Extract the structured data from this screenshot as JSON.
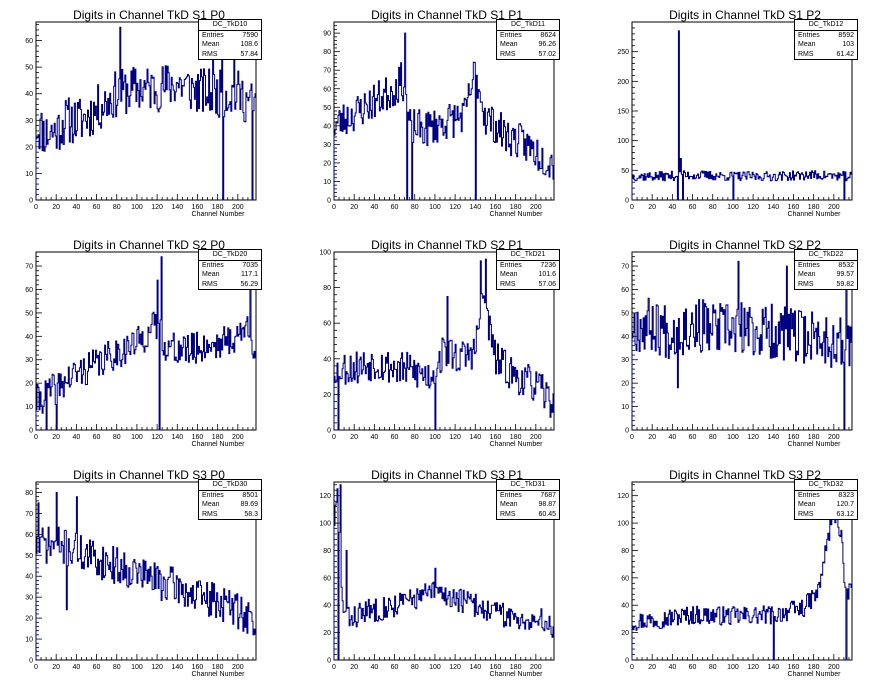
{
  "stat_labels": {
    "entries": "Entries",
    "mean": "Mean",
    "rms": "RMS"
  },
  "chart_data": [
    {
      "type": "line",
      "title": "Digits in Channel TkD S1 P0",
      "xlabel": "Channel Number",
      "stats": {
        "name": "DC_TkD10",
        "entries": "7590",
        "mean": "108.6",
        "rms": "57.84"
      },
      "xlim": [
        0,
        218
      ],
      "ylim": [
        0,
        67
      ],
      "xticks": [
        0,
        20,
        40,
        60,
        80,
        100,
        120,
        140,
        160,
        180,
        200
      ],
      "yticks": [
        0,
        10,
        20,
        30,
        40,
        50,
        60
      ],
      "profile": [
        [
          0,
          28
        ],
        [
          10,
          25
        ],
        [
          20,
          26
        ],
        [
          30,
          30
        ],
        [
          45,
          30
        ],
        [
          60,
          34
        ],
        [
          80,
          40
        ],
        [
          100,
          42
        ],
        [
          120,
          42
        ],
        [
          140,
          44
        ],
        [
          160,
          41
        ],
        [
          180,
          40
        ],
        [
          200,
          40
        ],
        [
          218,
          35
        ]
      ],
      "noise": 9,
      "seed": 11,
      "spikes": [
        [
          83,
          65
        ],
        [
          175,
          60
        ],
        [
          184,
          60
        ],
        [
          196,
          58
        ],
        [
          185,
          0
        ],
        [
          214,
          0
        ]
      ]
    },
    {
      "type": "line",
      "title": "Digits in Channel TkD S1 P1",
      "xlabel": "Channel Number",
      "stats": {
        "name": "DC_TkD11",
        "entries": "8624",
        "mean": "96.26",
        "rms": "57.02"
      },
      "xlim": [
        0,
        218
      ],
      "ylim": [
        0,
        96
      ],
      "xticks": [
        0,
        20,
        40,
        60,
        80,
        100,
        120,
        140,
        160,
        180,
        200
      ],
      "yticks": [
        0,
        10,
        20,
        30,
        40,
        50,
        60,
        70,
        80,
        90
      ],
      "profile": [
        [
          0,
          40
        ],
        [
          15,
          45
        ],
        [
          30,
          50
        ],
        [
          45,
          55
        ],
        [
          60,
          60
        ],
        [
          68,
          65
        ],
        [
          75,
          40
        ],
        [
          90,
          38
        ],
        [
          110,
          42
        ],
        [
          130,
          46
        ],
        [
          140,
          70
        ],
        [
          150,
          45
        ],
        [
          170,
          35
        ],
        [
          190,
          30
        ],
        [
          210,
          22
        ],
        [
          218,
          20
        ]
      ],
      "noise": 10,
      "seed": 23,
      "spikes": [
        [
          70,
          90
        ],
        [
          140,
          85
        ],
        [
          72,
          0
        ],
        [
          77,
          0
        ],
        [
          140,
          0
        ]
      ]
    },
    {
      "type": "line",
      "title": "Digits in Channel TkD S1 P2",
      "xlabel": "Channel Number",
      "stats": {
        "name": "DC_TkD12",
        "entries": "8592",
        "mean": "103",
        "rms": "61.42"
      },
      "xlim": [
        0,
        218
      ],
      "ylim": [
        0,
        300
      ],
      "xticks": [
        0,
        20,
        40,
        60,
        80,
        100,
        120,
        140,
        160,
        180,
        200
      ],
      "yticks": [
        0,
        50,
        100,
        150,
        200,
        250
      ],
      "profile": [
        [
          0,
          40
        ],
        [
          30,
          40
        ],
        [
          60,
          42
        ],
        [
          100,
          40
        ],
        [
          140,
          40
        ],
        [
          180,
          42
        ],
        [
          218,
          40
        ]
      ],
      "noise": 8,
      "seed": 37,
      "spikes": [
        [
          46,
          285
        ],
        [
          48,
          70
        ],
        [
          45,
          0
        ],
        [
          50,
          0
        ],
        [
          100,
          0
        ],
        [
          210,
          0
        ]
      ]
    },
    {
      "type": "line",
      "title": "Digits in Channel TkD S2 P0",
      "xlabel": "Channel Number",
      "stats": {
        "name": "DC_TkD20",
        "entries": "7035",
        "mean": "117.1",
        "rms": "56.29"
      },
      "xlim": [
        0,
        218
      ],
      "ylim": [
        0,
        76
      ],
      "xticks": [
        0,
        20,
        40,
        60,
        80,
        100,
        120,
        140,
        160,
        180,
        200
      ],
      "yticks": [
        0,
        10,
        20,
        30,
        40,
        50,
        60,
        70
      ],
      "profile": [
        [
          0,
          12
        ],
        [
          20,
          18
        ],
        [
          40,
          24
        ],
        [
          60,
          28
        ],
        [
          80,
          33
        ],
        [
          100,
          37
        ],
        [
          120,
          45
        ],
        [
          130,
          35
        ],
        [
          150,
          34
        ],
        [
          170,
          36
        ],
        [
          190,
          38
        ],
        [
          200,
          40
        ],
        [
          212,
          45
        ],
        [
          218,
          30
        ]
      ],
      "noise": 7,
      "seed": 41,
      "spikes": [
        [
          124,
          74
        ],
        [
          120,
          64
        ],
        [
          122,
          0
        ],
        [
          10,
          0
        ],
        [
          20,
          0
        ],
        [
          212,
          62
        ]
      ]
    },
    {
      "type": "line",
      "title": "Digits in Channel TkD S2 P1",
      "xlabel": "Channel Number",
      "stats": {
        "name": "DC_TkD21",
        "entries": "7236",
        "mean": "101.6",
        "rms": "57.06"
      },
      "xlim": [
        0,
        218
      ],
      "ylim": [
        0,
        100
      ],
      "xticks": [
        0,
        20,
        40,
        60,
        80,
        100,
        120,
        140,
        160,
        180,
        200
      ],
      "yticks": [
        0,
        20,
        40,
        60,
        80,
        100
      ],
      "profile": [
        [
          0,
          35
        ],
        [
          20,
          35
        ],
        [
          40,
          38
        ],
        [
          60,
          35
        ],
        [
          80,
          33
        ],
        [
          95,
          30
        ],
        [
          110,
          45
        ],
        [
          125,
          40
        ],
        [
          140,
          45
        ],
        [
          148,
          75
        ],
        [
          160,
          40
        ],
        [
          180,
          30
        ],
        [
          200,
          25
        ],
        [
          218,
          15
        ]
      ],
      "noise": 10,
      "seed": 53,
      "spikes": [
        [
          145,
          95
        ],
        [
          150,
          96
        ],
        [
          100,
          0
        ],
        [
          112,
          75
        ],
        [
          4,
          0
        ]
      ]
    },
    {
      "type": "line",
      "title": "Digits in Channel TkD S2 P2",
      "xlabel": "Channel Number",
      "stats": {
        "name": "DC_TkD22",
        "entries": "8532",
        "mean": "99.57",
        "rms": "59.82"
      },
      "xlim": [
        0,
        218
      ],
      "ylim": [
        0,
        76
      ],
      "xticks": [
        0,
        20,
        40,
        60,
        80,
        100,
        120,
        140,
        160,
        180,
        200
      ],
      "yticks": [
        0,
        10,
        20,
        30,
        40,
        50,
        60,
        70
      ],
      "profile": [
        [
          0,
          45
        ],
        [
          20,
          45
        ],
        [
          40,
          42
        ],
        [
          60,
          45
        ],
        [
          80,
          43
        ],
        [
          100,
          43
        ],
        [
          120,
          42
        ],
        [
          140,
          42
        ],
        [
          160,
          40
        ],
        [
          180,
          40
        ],
        [
          200,
          38
        ],
        [
          212,
          35
        ],
        [
          218,
          40
        ]
      ],
      "noise": 12,
      "seed": 67,
      "spikes": [
        [
          105,
          72
        ],
        [
          153,
          70
        ],
        [
          45,
          18
        ],
        [
          210,
          0
        ],
        [
          212,
          70
        ]
      ]
    },
    {
      "type": "line",
      "title": "Digits in Channel TkD S3 P0",
      "xlabel": "Channel Number",
      "stats": {
        "name": "DC_TkD30",
        "entries": "8501",
        "mean": "89.69",
        "rms": "58.3"
      },
      "xlim": [
        0,
        218
      ],
      "ylim": [
        0,
        85
      ],
      "xticks": [
        0,
        20,
        40,
        60,
        80,
        100,
        120,
        140,
        160,
        180,
        200
      ],
      "yticks": [
        0,
        10,
        20,
        30,
        40,
        50,
        60,
        70,
        80
      ],
      "profile": [
        [
          0,
          55
        ],
        [
          20,
          55
        ],
        [
          40,
          52
        ],
        [
          60,
          48
        ],
        [
          80,
          45
        ],
        [
          100,
          42
        ],
        [
          120,
          38
        ],
        [
          140,
          35
        ],
        [
          160,
          30
        ],
        [
          180,
          28
        ],
        [
          200,
          24
        ],
        [
          218,
          18
        ]
      ],
      "noise": 9,
      "seed": 71,
      "spikes": [
        [
          2,
          75
        ],
        [
          20,
          80
        ],
        [
          40,
          78
        ],
        [
          30,
          24
        ],
        [
          215,
          12
        ]
      ]
    },
    {
      "type": "line",
      "title": "Digits in Channel TkD S3 P1",
      "xlabel": "Channel Number",
      "stats": {
        "name": "DC_TkD31",
        "entries": "7687",
        "mean": "98.87",
        "rms": "60.45"
      },
      "xlim": [
        0,
        218
      ],
      "ylim": [
        0,
        130
      ],
      "xticks": [
        0,
        20,
        40,
        60,
        80,
        100,
        120,
        140,
        160,
        180,
        200
      ],
      "yticks": [
        0,
        20,
        40,
        60,
        80,
        100,
        120
      ],
      "profile": [
        [
          0,
          100
        ],
        [
          4,
          120
        ],
        [
          8,
          40
        ],
        [
          14,
          30
        ],
        [
          30,
          35
        ],
        [
          60,
          40
        ],
        [
          80,
          45
        ],
        [
          100,
          50
        ],
        [
          120,
          45
        ],
        [
          140,
          40
        ],
        [
          160,
          35
        ],
        [
          180,
          30
        ],
        [
          200,
          30
        ],
        [
          218,
          25
        ]
      ],
      "noise": 9,
      "seed": 83,
      "spikes": [
        [
          3,
          125
        ],
        [
          6,
          128
        ],
        [
          12,
          80
        ],
        [
          100,
          67
        ],
        [
          4,
          0
        ]
      ]
    },
    {
      "type": "line",
      "title": "Digits in Channel TkD S3 P2",
      "xlabel": "Channel Number",
      "stats": {
        "name": "DC_TkD32",
        "entries": "8323",
        "mean": "120.7",
        "rms": "63.12"
      },
      "xlim": [
        0,
        218
      ],
      "ylim": [
        0,
        130
      ],
      "xticks": [
        0,
        20,
        40,
        60,
        80,
        100,
        120,
        140,
        160,
        180,
        200
      ],
      "yticks": [
        0,
        20,
        40,
        60,
        80,
        100,
        120
      ],
      "profile": [
        [
          0,
          28
        ],
        [
          30,
          30
        ],
        [
          60,
          33
        ],
        [
          100,
          32
        ],
        [
          140,
          33
        ],
        [
          170,
          38
        ],
        [
          185,
          50
        ],
        [
          192,
          80
        ],
        [
          200,
          110
        ],
        [
          208,
          90
        ],
        [
          212,
          40
        ],
        [
          218,
          60
        ]
      ],
      "noise": 7,
      "seed": 97,
      "spikes": [
        [
          196,
          120
        ],
        [
          203,
          125
        ],
        [
          140,
          0
        ],
        [
          212,
          0
        ]
      ]
    }
  ]
}
